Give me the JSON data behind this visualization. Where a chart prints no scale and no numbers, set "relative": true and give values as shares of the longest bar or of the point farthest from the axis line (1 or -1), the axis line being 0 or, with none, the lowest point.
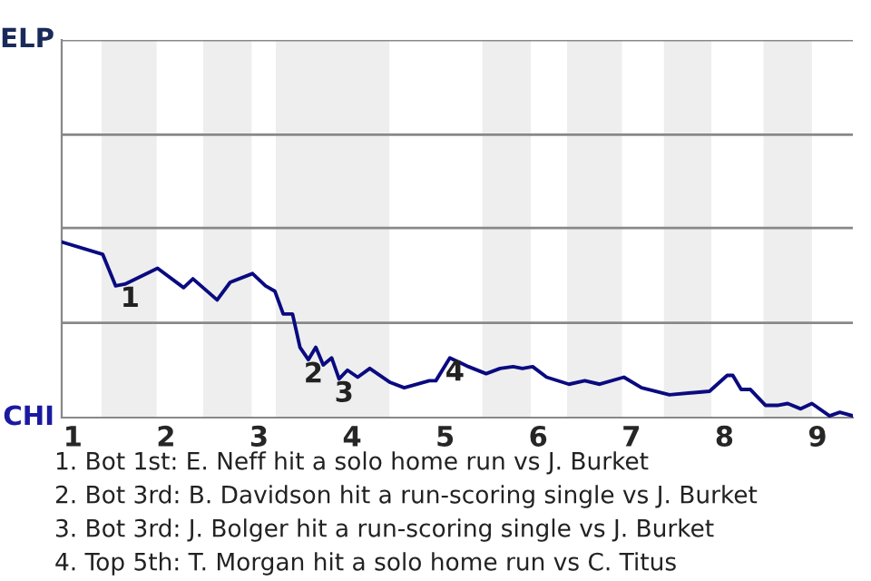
{
  "chart_data": {
    "type": "line",
    "relative": true,
    "x": [
      0.88,
      1.32,
      1.46,
      1.56,
      1.91,
      2.19,
      2.29,
      2.55,
      2.69,
      2.93,
      3.07,
      3.17,
      3.26,
      3.36,
      3.44,
      3.53,
      3.61,
      3.69,
      3.78,
      3.86,
      3.95,
      4.06,
      4.19,
      4.41,
      4.56,
      4.83,
      4.9,
      5.05,
      5.25,
      5.44,
      5.59,
      5.73,
      5.83,
      5.94,
      6.09,
      6.33,
      6.5,
      6.66,
      6.92,
      7.11,
      7.41,
      7.84,
      8.03,
      8.09,
      8.18,
      8.28,
      8.44,
      8.58,
      8.68,
      8.82,
      8.94,
      9.13,
      9.24,
      9.38
    ],
    "series": [
      {
        "color": "#0a0a80",
        "values": [
          1,
          0.93,
          0.75,
          0.76,
          0.85,
          0.74,
          0.79,
          0.67,
          0.77,
          0.82,
          0.75,
          0.72,
          0.59,
          0.59,
          0.4,
          0.33,
          0.4,
          0.3,
          0.34,
          0.22,
          0.27,
          0.23,
          0.28,
          0.2,
          0.17,
          0.21,
          0.21,
          0.34,
          0.29,
          0.25,
          0.28,
          0.29,
          0.28,
          0.29,
          0.23,
          0.19,
          0.21,
          0.19,
          0.23,
          0.17,
          0.13,
          0.15,
          0.24,
          0.24,
          0.16,
          0.16,
          0.07,
          0.07,
          0.08,
          0.05,
          0.08,
          0.01,
          0.03,
          0.01
        ]
      }
    ],
    "xlim": [
      0.88,
      9.38
    ],
    "xticks": [
      1,
      2,
      3,
      4,
      5,
      6,
      7,
      8,
      9
    ],
    "bands": [
      {
        "axis": "x",
        "from": 1.31,
        "to": 1.9,
        "color": "#eeeeee"
      },
      {
        "axis": "x",
        "from": 2.4,
        "to": 2.92,
        "color": "#eeeeee"
      },
      {
        "axis": "x",
        "from": 3.18,
        "to": 4.4,
        "color": "#eeeeee"
      },
      {
        "axis": "x",
        "from": 5.4,
        "to": 5.92,
        "color": "#eeeeee"
      },
      {
        "axis": "x",
        "from": 6.31,
        "to": 6.9,
        "color": "#eeeeee"
      },
      {
        "axis": "x",
        "from": 7.35,
        "to": 7.86,
        "color": "#eeeeee"
      },
      {
        "axis": "x",
        "from": 8.42,
        "to": 8.94,
        "color": "#eeeeee"
      }
    ],
    "annotations": [
      "ELP",
      "CHI",
      {
        "text": "1",
        "x": 1.56,
        "y": 0.76
      },
      {
        "text": "2",
        "x": 3.53,
        "y": 0.33
      },
      {
        "text": "3",
        "x": 3.86,
        "y": 0.22
      },
      {
        "text": "4",
        "x": 5.05,
        "y": 0.34
      },
      "1. Bot 1st: E. Neff hit a solo home run vs J. Burket",
      "2. Bot 3rd: B. Davidson hit a run-scoring single vs J. Burket",
      "3. Bot 3rd: J. Bolger hit a run-scoring single vs J. Burket",
      "4. Top 5th: T. Morgan hit a solo home run vs C. Titus"
    ],
    "ref_lines": [
      {
        "axis": "y",
        "value": 0.54,
        "color": "#888888"
      },
      {
        "axis": "y",
        "value": 1.08,
        "color": "#888888"
      },
      {
        "axis": "y",
        "value": 1.61,
        "color": "#888888"
      },
      {
        "axis": "y",
        "value": 2.15,
        "color": "#888888"
      }
    ],
    "legend": false,
    "marker": "none",
    "line_style": "solid"
  }
}
